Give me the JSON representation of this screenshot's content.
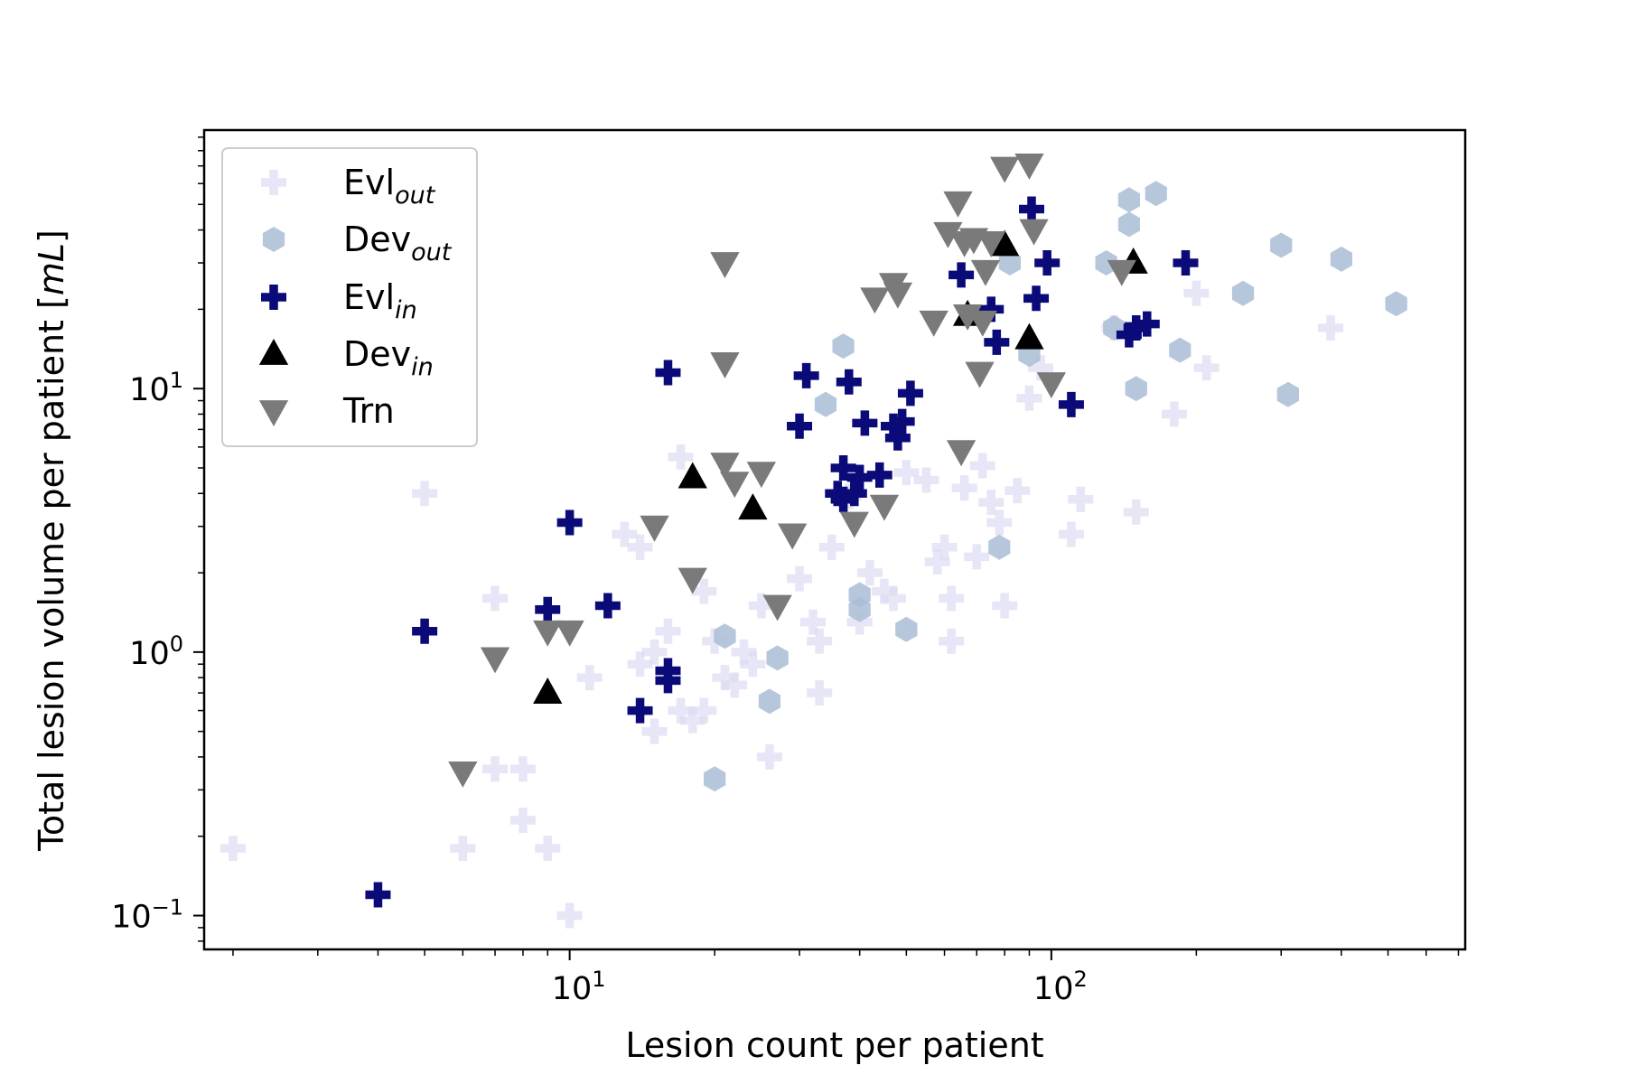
{
  "chart_data": {
    "type": "scatter",
    "title": "",
    "xlabel": "Lesion count per patient",
    "ylabel": "Total lesion volume per patient [mL]",
    "ylabel_parts": {
      "text": "Total lesion volume per patient [",
      "unit": "mL",
      "close": "]"
    },
    "xscale": "log",
    "yscale": "log",
    "xlim": [
      1.75,
      720
    ],
    "ylim": [
      0.075,
      95
    ],
    "xticks": [
      {
        "value": 10,
        "base": "10",
        "exp": "1"
      },
      {
        "value": 100,
        "base": "10",
        "exp": "2"
      }
    ],
    "yticks": [
      {
        "value": 0.1,
        "base": "10",
        "exp": "−1"
      },
      {
        "value": 1,
        "base": "10",
        "exp": "0"
      },
      {
        "value": 10,
        "base": "10",
        "exp": "1"
      }
    ],
    "legend_position": "top-left",
    "series": [
      {
        "name": "Evl_out",
        "label_main": "Evl",
        "label_sub": "out",
        "marker": "plus",
        "color": "#dcdcf2",
        "opacity": 0.7,
        "points": [
          [
            2,
            0.18
          ],
          [
            5,
            4.0
          ],
          [
            6,
            0.18
          ],
          [
            7,
            0.36
          ],
          [
            7,
            1.6
          ],
          [
            8,
            0.36
          ],
          [
            8,
            0.23
          ],
          [
            9,
            0.18
          ],
          [
            10,
            0.1
          ],
          [
            11,
            0.8
          ],
          [
            13,
            2.8
          ],
          [
            14,
            2.5
          ],
          [
            14,
            0.9
          ],
          [
            15,
            1.0
          ],
          [
            15,
            0.5
          ],
          [
            16,
            1.2
          ],
          [
            17,
            5.5
          ],
          [
            17,
            0.6
          ],
          [
            18,
            0.55
          ],
          [
            19,
            1.7
          ],
          [
            19,
            0.6
          ],
          [
            20,
            1.1
          ],
          [
            21,
            0.8
          ],
          [
            22,
            0.75
          ],
          [
            23,
            1.0
          ],
          [
            24,
            0.9
          ],
          [
            25,
            1.5
          ],
          [
            26,
            0.4
          ],
          [
            30,
            1.9
          ],
          [
            32,
            1.3
          ],
          [
            33,
            1.1
          ],
          [
            33,
            0.7
          ],
          [
            35,
            2.5
          ],
          [
            38,
            3.9
          ],
          [
            40,
            1.3
          ],
          [
            42,
            2.0
          ],
          [
            45,
            1.7
          ],
          [
            47,
            1.6
          ],
          [
            50,
            4.8
          ],
          [
            55,
            4.5
          ],
          [
            58,
            2.2
          ],
          [
            60,
            2.5
          ],
          [
            62,
            1.6
          ],
          [
            62,
            1.1
          ],
          [
            66,
            4.2
          ],
          [
            70,
            2.3
          ],
          [
            72,
            5.1
          ],
          [
            75,
            3.7
          ],
          [
            78,
            3.1
          ],
          [
            80,
            1.5
          ],
          [
            85,
            4.1
          ],
          [
            90,
            9.2
          ],
          [
            95,
            12.0
          ],
          [
            110,
            2.8
          ],
          [
            115,
            3.8
          ],
          [
            135,
            17.0
          ],
          [
            150,
            3.4
          ],
          [
            180,
            8.0
          ],
          [
            200,
            23.0
          ],
          [
            210,
            12.0
          ],
          [
            380,
            17.0
          ]
        ]
      },
      {
        "name": "Dev_out",
        "label_main": "Dev",
        "label_sub": "out",
        "marker": "hexagon",
        "color": "#a9bdd6",
        "opacity": 0.85,
        "points": [
          [
            20,
            0.33
          ],
          [
            21,
            1.15
          ],
          [
            26,
            0.65
          ],
          [
            27,
            0.95
          ],
          [
            34,
            8.7
          ],
          [
            37,
            14.5
          ],
          [
            40,
            1.45
          ],
          [
            40,
            1.65
          ],
          [
            50,
            1.22
          ],
          [
            78,
            2.5
          ],
          [
            82,
            30.0
          ],
          [
            90,
            13.5
          ],
          [
            130,
            30.0
          ],
          [
            135,
            17.0
          ],
          [
            145,
            52.0
          ],
          [
            145,
            42.0
          ],
          [
            150,
            10.0
          ],
          [
            165,
            55.0
          ],
          [
            185,
            14.0
          ],
          [
            250,
            23.0
          ],
          [
            300,
            35.0
          ],
          [
            310,
            9.5
          ],
          [
            400,
            31.0
          ],
          [
            520,
            21.0
          ]
        ]
      },
      {
        "name": "Evl_in",
        "label_main": "Evl",
        "label_sub": "in",
        "marker": "plus",
        "color": "#0a0a78",
        "opacity": 1,
        "points": [
          [
            4,
            0.12
          ],
          [
            5,
            1.2
          ],
          [
            9,
            1.45
          ],
          [
            10,
            3.1
          ],
          [
            12,
            1.5
          ],
          [
            14,
            0.6
          ],
          [
            16,
            0.85
          ],
          [
            16,
            0.78
          ],
          [
            16,
            11.5
          ],
          [
            30,
            7.2
          ],
          [
            31,
            11.2
          ],
          [
            36,
            4.0
          ],
          [
            37,
            3.8
          ],
          [
            37,
            5.0
          ],
          [
            38,
            10.6
          ],
          [
            39,
            4.0
          ],
          [
            40,
            4.6
          ],
          [
            41,
            7.4
          ],
          [
            44,
            4.7
          ],
          [
            47,
            7.2
          ],
          [
            48,
            6.5
          ],
          [
            49,
            7.5
          ],
          [
            51,
            9.6
          ],
          [
            65,
            27.0
          ],
          [
            75,
            20.0
          ],
          [
            77,
            15.0
          ],
          [
            91,
            48.0
          ],
          [
            93,
            22.0
          ],
          [
            98,
            30.0
          ],
          [
            110,
            8.7
          ],
          [
            145,
            16.0
          ],
          [
            150,
            17.0
          ],
          [
            158,
            17.6
          ],
          [
            190,
            30.0
          ]
        ]
      },
      {
        "name": "Dev_in",
        "label_main": "Dev",
        "label_sub": "in",
        "marker": "triangle-up",
        "color": "#000000",
        "opacity": 1,
        "points": [
          [
            9,
            0.7
          ],
          [
            18,
            4.6
          ],
          [
            24,
            3.5
          ],
          [
            67,
            19.0
          ],
          [
            80,
            35.0
          ],
          [
            90,
            15.5
          ],
          [
            148,
            30.0
          ]
        ]
      },
      {
        "name": "Trn",
        "label_main": "Trn",
        "label_sub": "",
        "marker": "triangle-down",
        "color": "#7a7a7a",
        "opacity": 1,
        "points": [
          [
            6,
            0.35
          ],
          [
            7,
            0.95
          ],
          [
            9,
            1.2
          ],
          [
            10,
            1.2
          ],
          [
            15,
            3.0
          ],
          [
            18,
            1.9
          ],
          [
            21,
            30.0
          ],
          [
            21,
            12.5
          ],
          [
            21,
            5.2
          ],
          [
            22,
            4.4
          ],
          [
            25,
            4.8
          ],
          [
            27,
            1.5
          ],
          [
            29,
            2.8
          ],
          [
            39,
            3.1
          ],
          [
            43,
            22.0
          ],
          [
            45,
            3.6
          ],
          [
            47,
            25.0
          ],
          [
            48,
            23.0
          ],
          [
            57,
            18.0
          ],
          [
            61,
            39.0
          ],
          [
            64,
            51.0
          ],
          [
            65,
            5.8
          ],
          [
            66,
            36.0
          ],
          [
            67,
            19.0
          ],
          [
            69,
            37.0
          ],
          [
            71,
            11.5
          ],
          [
            72,
            18.0
          ],
          [
            73,
            28.0
          ],
          [
            75,
            36.0
          ],
          [
            80,
            69.0
          ],
          [
            90,
            71.0
          ],
          [
            92,
            40.0
          ],
          [
            100,
            10.5
          ],
          [
            140,
            28.0
          ]
        ]
      }
    ]
  }
}
